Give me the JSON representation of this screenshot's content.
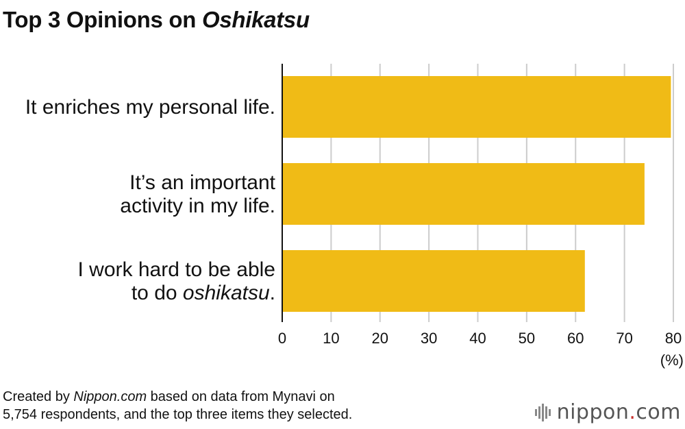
{
  "title": {
    "main": "Top 3 Opinions on ",
    "italic": "Oshikatsu"
  },
  "chart_data": {
    "type": "bar",
    "orientation": "horizontal",
    "categories": [
      [
        "It enriches my personal life."
      ],
      [
        "It’s an important",
        "activity in my life."
      ],
      [
        "I work hard to be able",
        "to do |oshikatsu|."
      ]
    ],
    "values": [
      79.5,
      74.1,
      61.9
    ],
    "xlim": [
      0,
      80
    ],
    "xticks": [
      "0",
      "10",
      "20",
      "30",
      "40",
      "50",
      "60",
      "70",
      "80"
    ],
    "xunit": "(%)",
    "grid": true,
    "colors": {
      "bar": "#F0BB16",
      "grid": "#CCCCCC",
      "axis": "#111111"
    }
  },
  "footnote": {
    "prefix": "Created by ",
    "italic": "Nippon.com",
    "line1_rest": " based on data from Mynavi on",
    "line2": "5,754 respondents, and the top three items they selected."
  },
  "logo": {
    "name": "nippon",
    "dot": ".",
    "tld": "com",
    "icon": "bars-icon"
  }
}
